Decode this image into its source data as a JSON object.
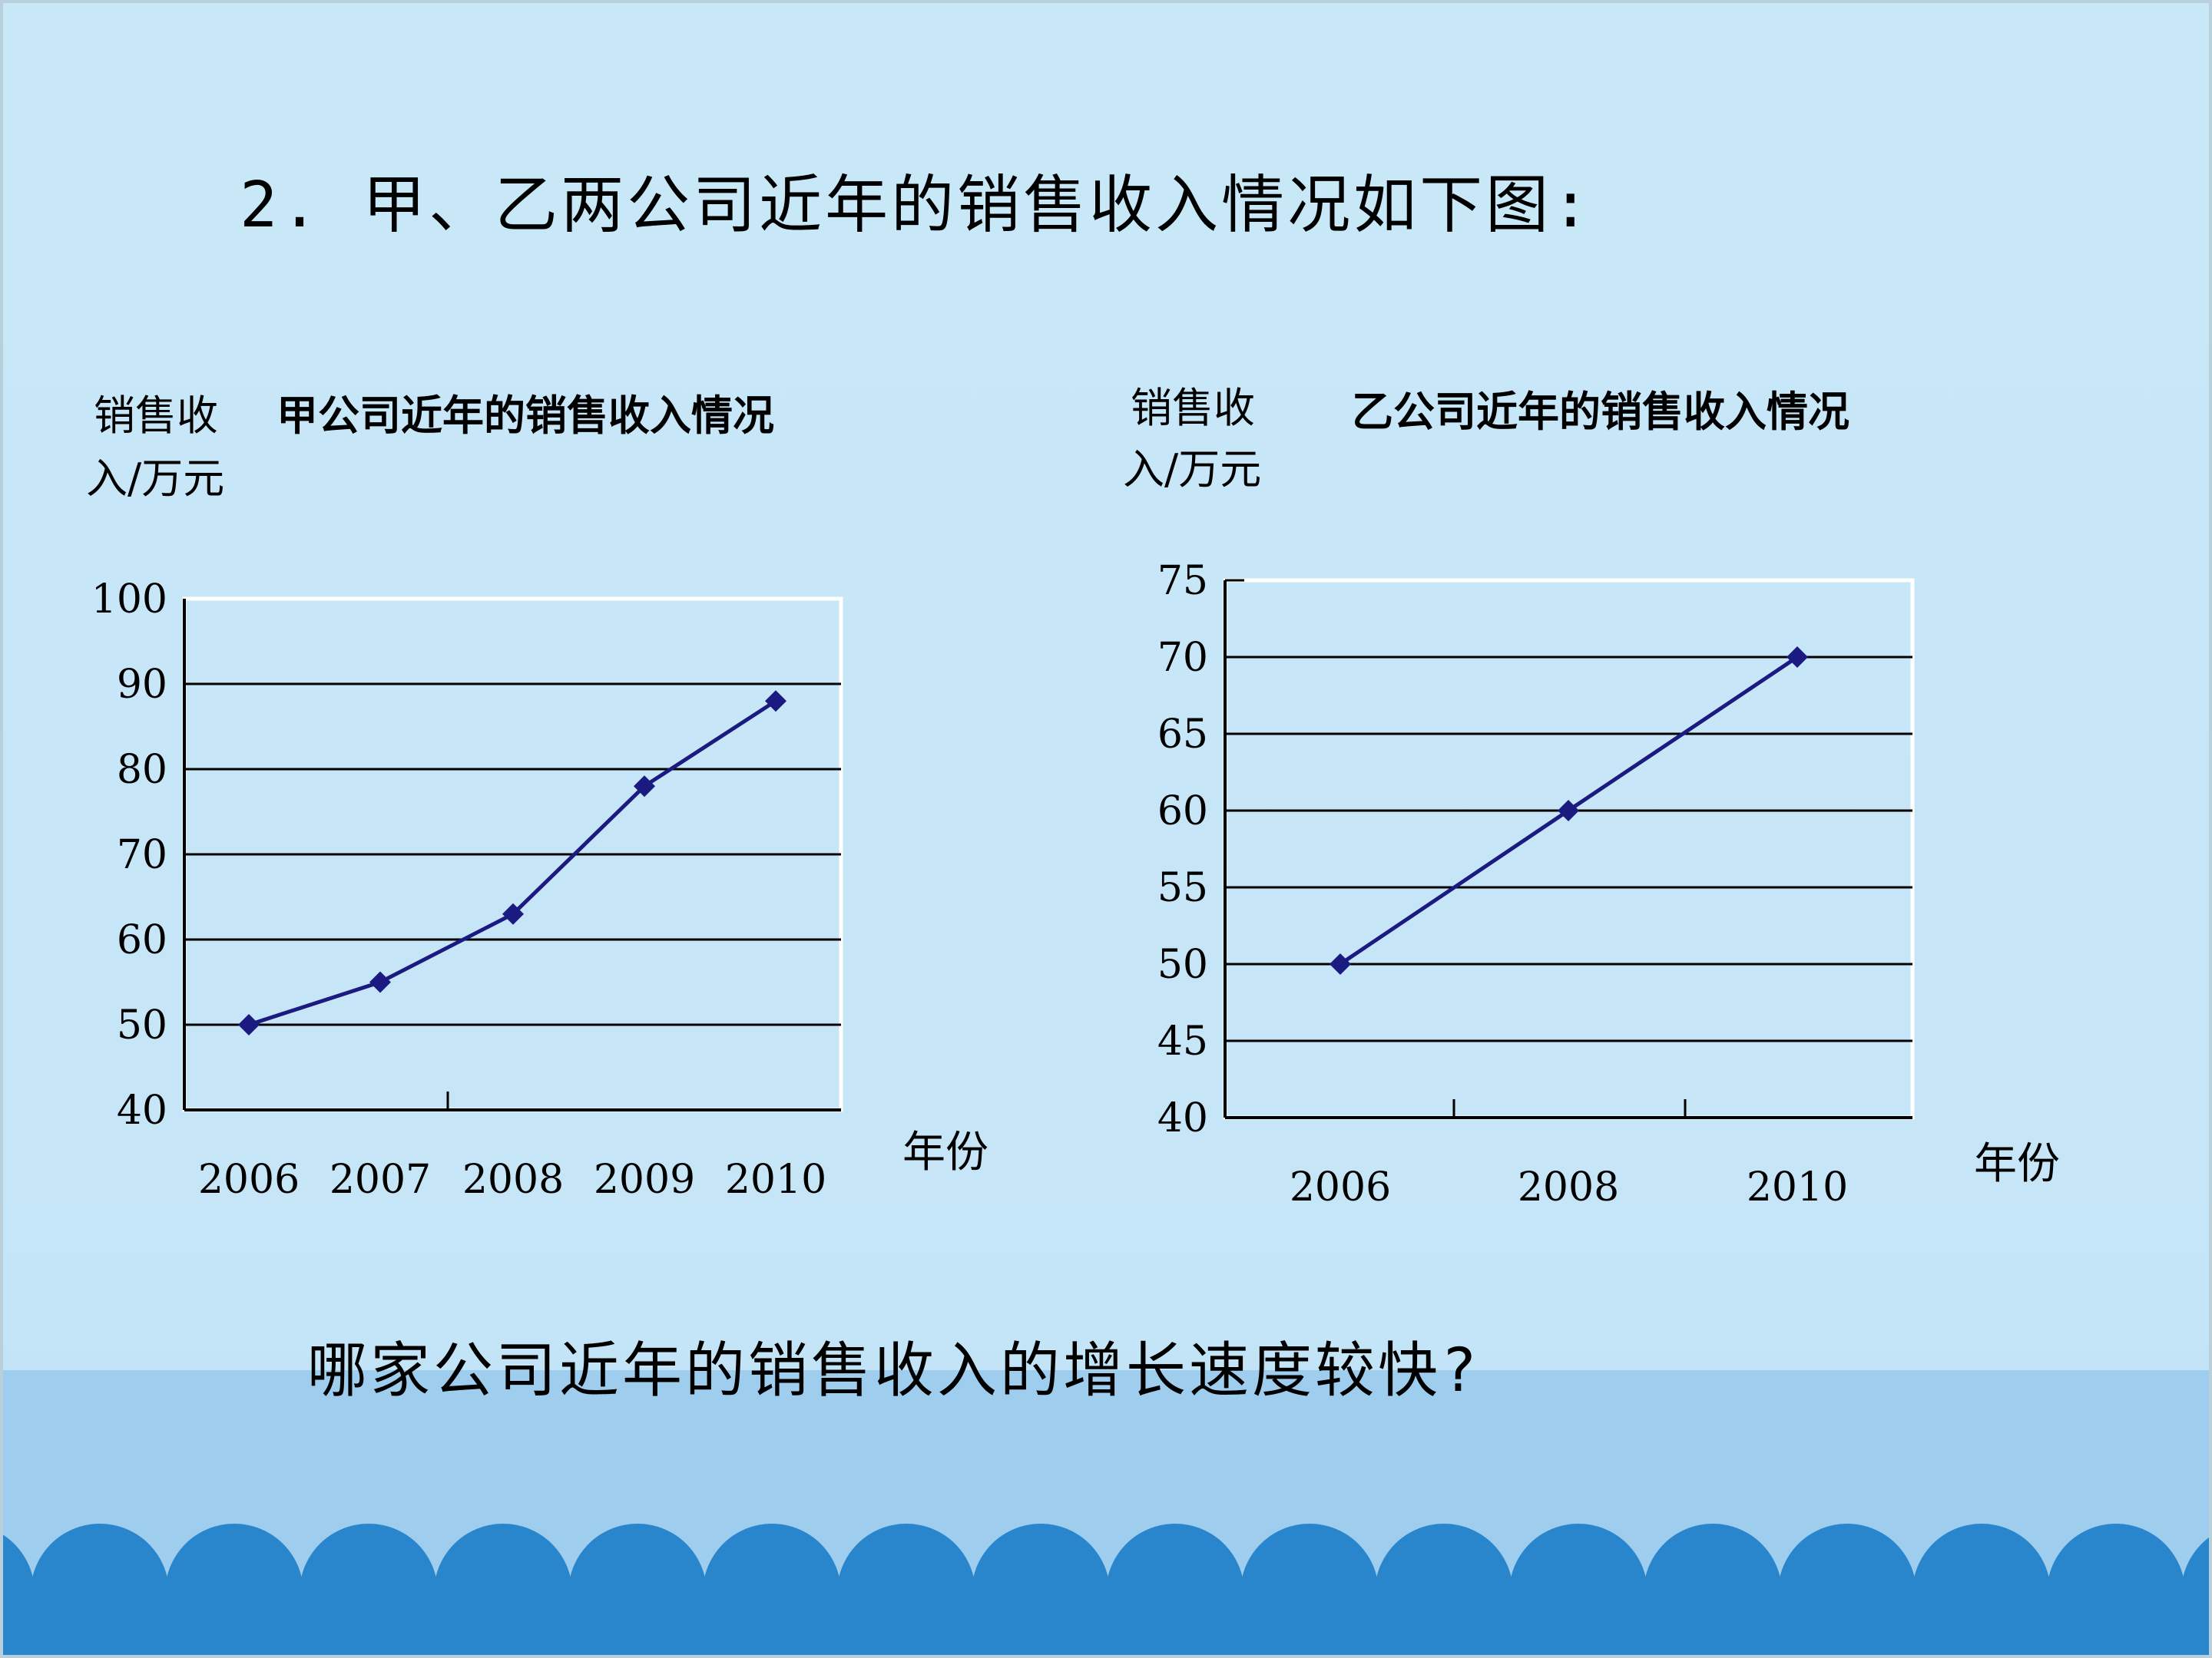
{
  "slide": {
    "title": "2. 甲、乙两公司近年的销售收入情况如下图:",
    "question": "哪家公司近年的销售收入的增长速度较快?"
  },
  "colors": {
    "background": "#c8e8f8",
    "band": "#9ecdee",
    "waves": "#2a86cc",
    "line": "#1a1a80"
  },
  "chart_data": [
    {
      "type": "line",
      "title": "甲公司近年的销售收入情况",
      "ylabel_line1": "销售收",
      "ylabel_line2": "入/万元",
      "xlabel": "年份",
      "categories": [
        "2006",
        "2007",
        "2008",
        "2009",
        "2010"
      ],
      "series": [
        {
          "values": [
            50,
            55,
            63,
            78,
            88
          ]
        }
      ],
      "ylim": [
        40,
        100
      ],
      "yticks": [
        40,
        50,
        60,
        70,
        80,
        90,
        100
      ],
      "grid": true
    },
    {
      "type": "line",
      "title": "乙公司近年的销售收入情况",
      "ylabel_line1": "销售收",
      "ylabel_line2": "入/万元",
      "xlabel": "年份",
      "categories": [
        "2006",
        "2008",
        "2010"
      ],
      "series": [
        {
          "values": [
            50,
            60,
            70
          ]
        }
      ],
      "ylim": [
        40,
        75
      ],
      "yticks": [
        40,
        45,
        50,
        55,
        60,
        65,
        70,
        75
      ],
      "grid": true
    }
  ]
}
